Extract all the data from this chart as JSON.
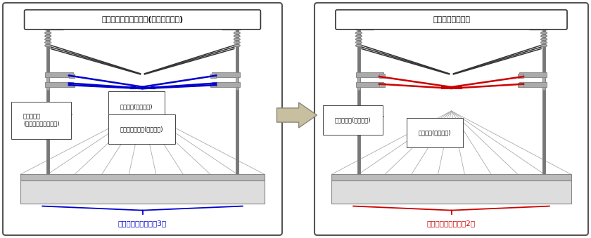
{
  "bg_color": "#ffffff",
  "panel_border": "#555555",
  "left_title": "《コンパウンド架線》(従来の電車線)",
  "right_title": "《シンプル架線》",
  "left_subtitle": "電車線　線条数　計3本",
  "right_subtitle": "電車線　線条数　計2本",
  "left_sub_color": "#0000cc",
  "right_sub_color": "#cc0000",
  "blue": "#0000cc",
  "red": "#cc0000",
  "gray_pole": "#888888",
  "gray_dark": "#555555",
  "gray_light": "#cccccc",
  "gray_mid": "#999999",
  "black_wire": "#333333",
  "arrow_fill": "#c8bfa0",
  "arrow_edge": "#888877",
  "label_l1a": "ちょう架線",
  "label_l1b": "(亜邉めっき銅より線)",
  "label_l2": "トロリ線(銅合金線)",
  "label_l3": "補助ちょう架線(銅より線)",
  "label_r1": "ちょう架線(銅より線)",
  "label_r2": "トロリ線(銅合金線)"
}
